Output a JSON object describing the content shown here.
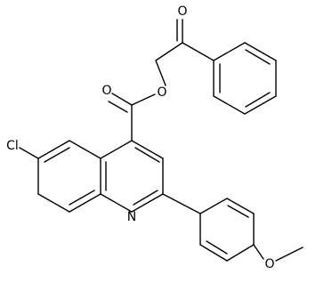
{
  "atoms": [
    {
      "label": "O"
    },
    {
      "label": "O"
    },
    {
      "label": "O"
    },
    {
      "label": "O"
    },
    {
      "label": "Cl"
    },
    {
      "label": "N"
    }
  ]
}
